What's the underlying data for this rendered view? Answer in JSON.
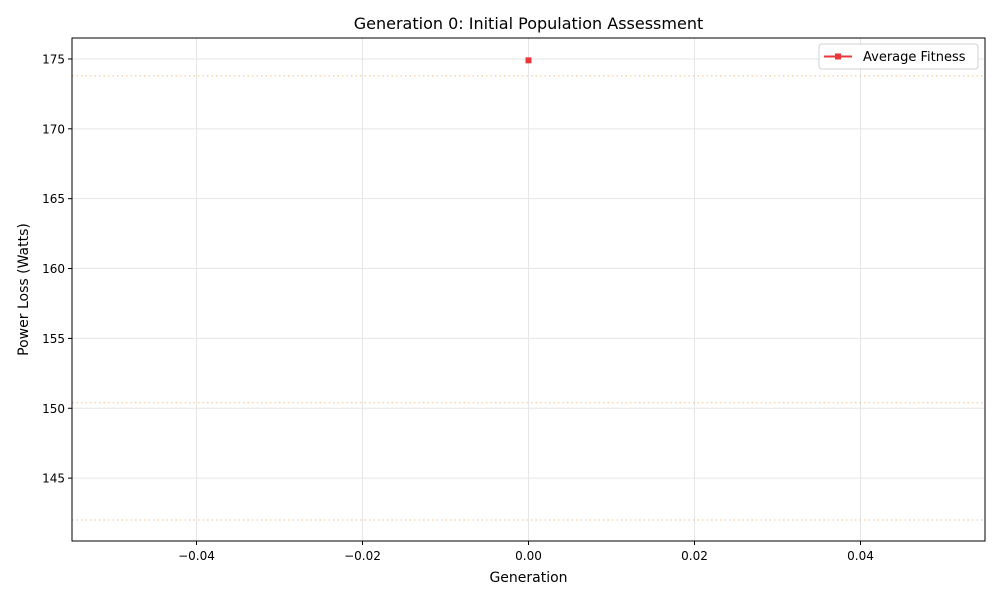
{
  "chart_data": {
    "type": "line",
    "title": "Generation 0: Initial Population Assessment",
    "xlabel": "Generation",
    "ylabel": "Power Loss (Watts)",
    "xlim": [
      -0.055,
      0.055
    ],
    "ylim": [
      140.5,
      176.5
    ],
    "x_ticks": [
      -0.04,
      -0.02,
      0.0,
      0.02,
      0.04
    ],
    "x_tick_labels": [
      "−0.04",
      "−0.02",
      "0.00",
      "0.02",
      "0.04"
    ],
    "y_ticks": [
      145,
      150,
      155,
      160,
      165,
      170,
      175
    ],
    "y_tick_labels": [
      "145",
      "150",
      "155",
      "160",
      "165",
      "170",
      "175"
    ],
    "grid": true,
    "legend_position": "top-right",
    "series": [
      {
        "name": "Average Fitness",
        "color": "#e8383b",
        "marker": "square",
        "x": [
          0
        ],
        "y": [
          174.9
        ]
      }
    ],
    "reference_lines": [
      {
        "y": 173.8,
        "color": "#f5c08a",
        "style": "dotted"
      },
      {
        "y": 150.4,
        "color": "#f5c08a",
        "style": "dotted"
      },
      {
        "y": 142.0,
        "color": "#f5c08a",
        "style": "dotted"
      }
    ]
  }
}
